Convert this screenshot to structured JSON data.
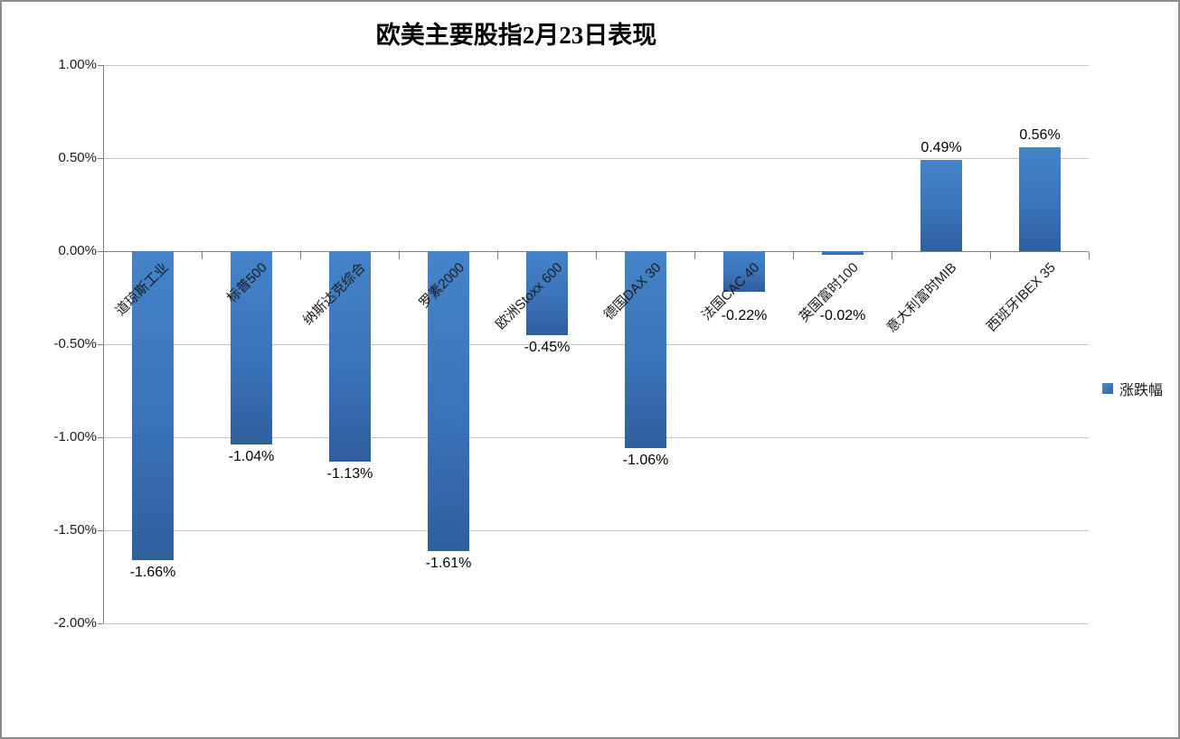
{
  "title": "欧美主要股指2月23日表现",
  "legend": {
    "label": "涨跌幅",
    "swatch_color": "#3B76BB"
  },
  "chart_data": {
    "type": "bar",
    "title": "欧美主要股指2月23日表现",
    "categories": [
      "道琼斯工业",
      "标普500",
      "纳斯达克综合",
      "罗素2000",
      "欧洲Stoxx 600",
      "德国DAX 30",
      "法国CAC 40",
      "英国富时100",
      "意大利富时MIB",
      "西班牙IBEX 35"
    ],
    "series": [
      {
        "name": "涨跌幅",
        "values": [
          -1.66,
          -1.04,
          -1.13,
          -1.61,
          -0.45,
          -1.06,
          -0.22,
          -0.02,
          0.49,
          0.56
        ]
      }
    ],
    "data_labels": [
      "-1.66%",
      "-1.04%",
      "-1.13%",
      "-1.61%",
      "-0.45%",
      "-1.06%",
      "-0.22%",
      "-0.02%",
      "0.49%",
      "0.56%"
    ],
    "xlabel": "",
    "ylabel": "",
    "ylim": [
      -2.0,
      1.0
    ],
    "y_ticks": [
      {
        "label": "1.00%",
        "value": 1.0
      },
      {
        "label": "0.50%",
        "value": 0.5
      },
      {
        "label": "0.00%",
        "value": 0.0
      },
      {
        "label": "-0.50%",
        "value": -0.5
      },
      {
        "label": "-1.00%",
        "value": -1.0
      },
      {
        "label": "-1.50%",
        "value": -1.5
      },
      {
        "label": "-2.00%",
        "value": -2.0
      }
    ],
    "grid": true,
    "legend_position": "right",
    "colors": {
      "bar_top": "#4484C9",
      "bar_mid": "#3B74BB",
      "bar_bottom": "#2F5F9D",
      "gridline": "#C6C6C6",
      "axis": "#7F7F7F",
      "frame_border": "#8C8C8C",
      "text": "#1A1A1A"
    }
  }
}
